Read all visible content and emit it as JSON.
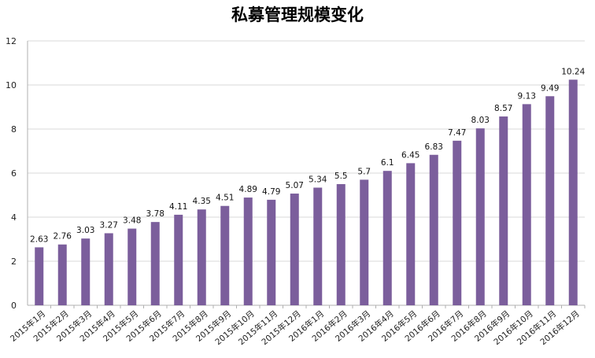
{
  "chart_data": {
    "type": "bar",
    "title": "私募管理规模变化",
    "xlabel": "",
    "ylabel": "",
    "ylim": [
      0,
      12
    ],
    "yticks": [
      0,
      2,
      4,
      6,
      8,
      10,
      12
    ],
    "grid": true,
    "legend": "none",
    "bar_color": "#7b5e9c",
    "categories": [
      "2015年1月",
      "2015年2月",
      "2015年3月",
      "2015年4月",
      "2015年5月",
      "2015年6月",
      "2015年7月",
      "2015年8月",
      "2015年9月",
      "2015年10月",
      "2015年11月",
      "2015年12月",
      "2016年1月",
      "2016年2月",
      "2016年3月",
      "2016年4月",
      "2016年5月",
      "2016年6月",
      "2016年7月",
      "2016年8月",
      "2016年9月",
      "2016年10月",
      "2016年11月",
      "2016年12月"
    ],
    "values": [
      2.63,
      2.76,
      3.03,
      3.27,
      3.48,
      3.78,
      4.11,
      4.35,
      4.51,
      4.89,
      4.79,
      5.07,
      5.34,
      5.5,
      5.7,
      6.1,
      6.45,
      6.83,
      7.47,
      8.03,
      8.57,
      9.13,
      9.49,
      10.24
    ]
  }
}
